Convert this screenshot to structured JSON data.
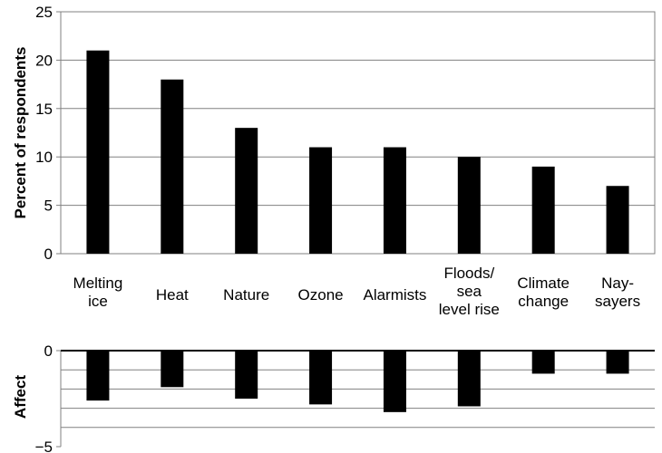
{
  "chart_data": [
    {
      "type": "bar",
      "categories": [
        "Melting ice",
        "Heat",
        "Nature",
        "Ozone",
        "Alarmists",
        "Floods/ sea level rise",
        "Climate change",
        "Nay- sayers"
      ],
      "category_lines": [
        [
          "Melting",
          "ice"
        ],
        [
          "Heat"
        ],
        [
          "Nature"
        ],
        [
          "Ozone"
        ],
        [
          "Alarmists"
        ],
        [
          "Floods/",
          "sea",
          "level rise"
        ],
        [
          "Climate",
          "change"
        ],
        [
          "Nay-",
          "sayers"
        ]
      ],
      "values": [
        21,
        18,
        13,
        11,
        11,
        10,
        9,
        7
      ],
      "ylabel": "Percent of respondents",
      "ylim": [
        0,
        25
      ],
      "yticks": [
        "0",
        "5",
        "10",
        "15",
        "20",
        "25"
      ],
      "grid": true,
      "bar_color": "#000000"
    },
    {
      "type": "bar",
      "categories": [
        "Melting ice",
        "Heat",
        "Nature",
        "Ozone",
        "Alarmists",
        "Floods/ sea level rise",
        "Climate change",
        "Nay- sayers"
      ],
      "values": [
        -2.6,
        -1.9,
        -2.5,
        -2.8,
        -3.2,
        -2.9,
        -1.2,
        -1.2
      ],
      "ylabel": "Affect",
      "ylim": [
        -5,
        0
      ],
      "yticks": [
        "0",
        "−5"
      ],
      "grid": true,
      "bar_color": "#000000"
    }
  ]
}
